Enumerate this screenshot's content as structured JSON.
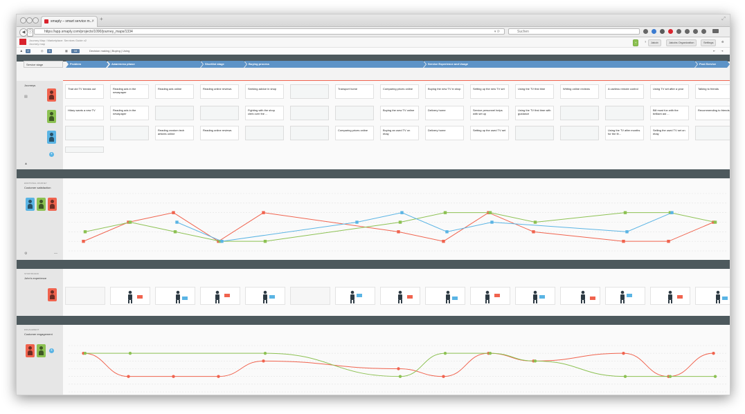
{
  "browser": {
    "tab_title": "smaply – smart service m...",
    "new_tab": "+",
    "tab_close": "×",
    "url": "https://app.smaply.com/projects/1090/journey_maps/1334",
    "search_placeholder": "Suchen",
    "url_icons": "▾ ⟳"
  },
  "app": {
    "breadcrumb_line1": "Journey Map / Marketplace: Services Guide v2",
    "breadcrumb_line2": "Journey map",
    "buttons": [
      "Jakob",
      "Jakobs Organization",
      "Settings"
    ],
    "toolbar_chip_1": "2",
    "toolbar_chip_2": "3",
    "toolbar_chip_3": "16",
    "toolbar_text": "Decision making | Buying | Using",
    "colors": {
      "red": "#f0634e",
      "green": "#8cc152",
      "blue": "#5ab4e4",
      "stage": "#5d93c7",
      "band": "#4d595d"
    }
  },
  "stages": {
    "label": "Service stage",
    "items": [
      "Problem",
      "Awareness phase",
      "Shortlist stage",
      "Buying process",
      "Service Experience and Usage",
      "Post Service"
    ]
  },
  "journeys": {
    "title": "Journeys",
    "rows": [
      {
        "persona_color": "#f0634e",
        "cards": [
          "That old TV breaks out",
          "Reading ads in the newspaper",
          "Reading ads online",
          "Reading online reviews",
          "Seeking advice in shop",
          "",
          "Transport home",
          "Comparing prices online",
          "Buying the new TV in shop",
          "Setting up the new TV set",
          "Using the TV first time",
          "Writing online reviews",
          "A useless remote control",
          "Using TV set after a year",
          "Talking to friends"
        ]
      },
      {
        "persona_color": "#8cc152",
        "cards": [
          "Hilary wants a new TV",
          "Reading ads in the newspaper",
          "",
          "",
          "Fighting with the shop clerk over the ...",
          "",
          "",
          "Buying the new TV online",
          "Delivery home",
          "Service personnel helps with set up",
          "Using the TV first time with guidance",
          "",
          "",
          "Bill must fun with the brilliant ast ...",
          "Recommending to friends"
        ]
      },
      {
        "persona_color": "#5ab4e4",
        "cards": [
          "",
          "",
          "Reading random tech articles online",
          "Reading online reviews",
          "",
          "",
          "Comparing prices online",
          "Buying an used TV on ebay",
          "Delivery home",
          "Setting up the used TV set",
          "",
          "",
          "Using the TV after months for the fir...",
          "Selling the used TV set on ebay",
          ""
        ]
      }
    ]
  },
  "emotions": {
    "kicker": "Emotional Journey",
    "title": "Customer satisfaction"
  },
  "storyboard": {
    "kicker": "Storyboard",
    "title": "John's experience"
  },
  "engagement": {
    "kicker": "Engagement",
    "title": "Customer engagement"
  },
  "chart_data": [
    {
      "type": "line",
      "title": "Customer satisfaction",
      "x": [
        1,
        2,
        3,
        4,
        5,
        6,
        7,
        8,
        9,
        10,
        11,
        12,
        13,
        14,
        15
      ],
      "ylim": [
        -3,
        3
      ],
      "series": [
        {
          "name": "red",
          "values": [
            -2,
            0,
            1,
            -2,
            1,
            null,
            null,
            -1,
            -2,
            1,
            -1,
            null,
            -2,
            -2,
            0
          ]
        },
        {
          "name": "green",
          "values": [
            -1,
            0,
            -1,
            -2,
            -2,
            null,
            null,
            0,
            1,
            1,
            0,
            null,
            1,
            1,
            0
          ]
        },
        {
          "name": "blue",
          "values": [
            null,
            null,
            0,
            -2,
            null,
            null,
            0,
            1,
            -1,
            0,
            null,
            null,
            -1,
            1,
            null
          ]
        }
      ]
    },
    {
      "type": "line",
      "title": "Customer engagement",
      "x": [
        1,
        2,
        3,
        4,
        5,
        6,
        7,
        8,
        9,
        10,
        11,
        12,
        13,
        14,
        15
      ],
      "ylim": [
        -3,
        3
      ],
      "series": [
        {
          "name": "red",
          "values": [
            2,
            -1,
            -1,
            -1,
            1,
            null,
            null,
            0,
            -1,
            2,
            1,
            null,
            2,
            -1,
            2
          ]
        },
        {
          "name": "green",
          "values": [
            2,
            2,
            null,
            null,
            2,
            null,
            null,
            -1,
            2,
            2,
            1,
            null,
            -1,
            -1,
            -1
          ]
        }
      ]
    }
  ],
  "storyboard_images": [
    "",
    "presenter",
    "desk-work",
    "dots-desk",
    "board-meeting",
    "",
    "scooter-delivery",
    "shopper",
    "trolley",
    "desk-boxes",
    "armchair",
    "waiting-desk",
    "tv-remote",
    "tv-viewing",
    "group-people"
  ]
}
